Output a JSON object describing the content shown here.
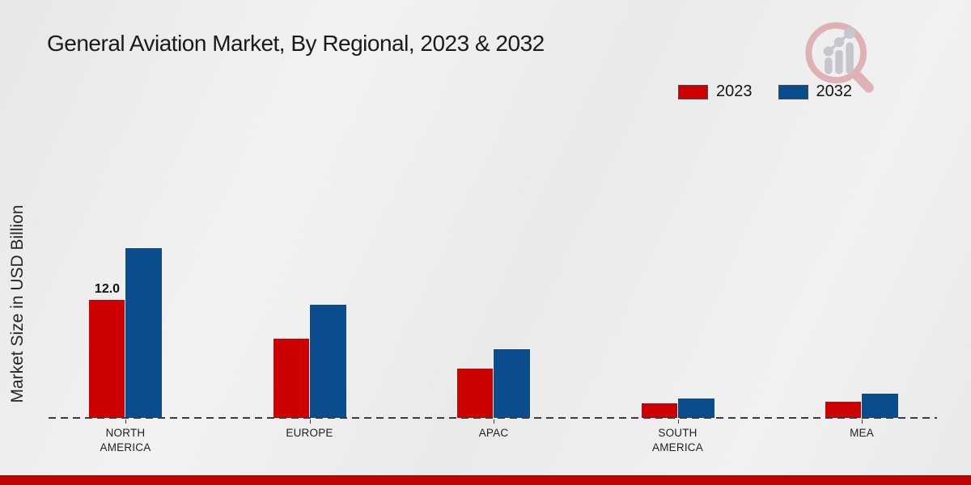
{
  "title": "General Aviation Market, By Regional, 2023 & 2032",
  "legend": {
    "items": [
      {
        "label": "2023",
        "color": "#cc0000"
      },
      {
        "label": "2032",
        "color": "#0b4d8c"
      }
    ]
  },
  "chart_data": {
    "type": "bar",
    "title": "General Aviation Market, By Regional, 2023 & 2032",
    "xlabel": "",
    "ylabel": "Market Size in USD Billion",
    "categories": [
      "NORTH AMERICA",
      "EUROPE",
      "APAC",
      "SOUTH AMERICA",
      "MEA"
    ],
    "series": [
      {
        "name": "2023",
        "color": "#cc0000",
        "values": [
          12.0,
          8.0,
          5.0,
          1.5,
          1.6
        ]
      },
      {
        "name": "2032",
        "color": "#0b4d8c",
        "values": [
          17.2,
          11.5,
          7.0,
          2.0,
          2.5
        ]
      }
    ],
    "data_labels": [
      {
        "series": "2023",
        "category": "NORTH AMERICA",
        "text": "12.0",
        "value": 12.0
      }
    ],
    "ylim": [
      0,
      18.5
    ],
    "grid": false,
    "legend_position": "top-right",
    "axis_line": "dashed",
    "y_ticks_shown": false
  },
  "branding": {
    "logo": "magnifier-growth-chart",
    "footer_color": "#bf0404"
  }
}
